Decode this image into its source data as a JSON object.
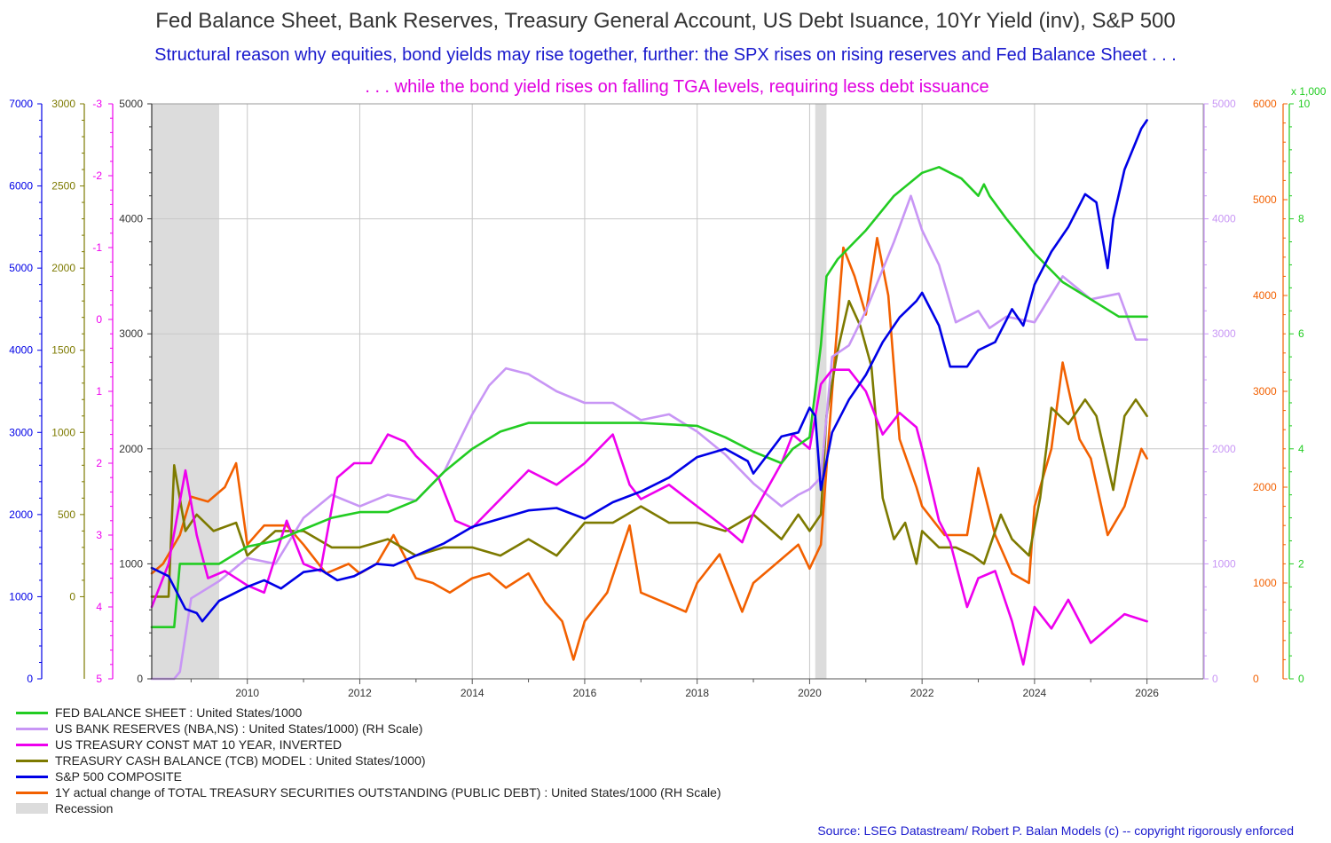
{
  "title": "Fed Balance Sheet, Bank Reserves, Treasury General Account, US Debt Isuance, 10Yr Yield (inv), S&P 500",
  "subtitle1": "Structural reason why equities, bond yields may rise together, further: the SPX rises on rising reserves and Fed Balance Sheet . . .",
  "subtitle2": ". . . while the bond yield rises on falling TGA levels, requiring less debt issuance",
  "source": "Source: LSEG Datastream/  Robert P. Balan Models (c) -- copyright rigorously enforced",
  "colors": {
    "fed": "#22cc22",
    "reserves": "#c896f5",
    "yield": "#ee00ee",
    "tga": "#7d7a00",
    "spx": "#0000e6",
    "debt": "#f26000",
    "recession": "#dcdcdc",
    "title": "#333333",
    "subtitle1": "#1a1acd",
    "subtitle2": "#e000e0"
  },
  "legend": [
    {
      "label": "FED BALANCE SHEET : United States/1000",
      "color": "#22cc22"
    },
    {
      "label": "US BANK RESERVES (NBA,NS) : United States/1000) (RH Scale)",
      "color": "#c896f5"
    },
    {
      "label": "US TREASURY CONST MAT 10 YEAR, INVERTED",
      "color": "#ee00ee"
    },
    {
      "label": "TREASURY CASH BALANCE (TCB)  MODEL : United States/1000)",
      "color": "#7d7a00"
    },
    {
      "label": "S&P 500 COMPOSITE",
      "color": "#0000e6"
    },
    {
      "label": "1Y actual change of TOTAL TREASURY SECURITIES OUTSTANDING (PUBLIC DEBT) : United States/1000 (RH Scale)",
      "color": "#f26000"
    },
    {
      "label": "Recession",
      "color": "#dcdcdc"
    }
  ],
  "chart_data": {
    "type": "line",
    "xlim": [
      2008.3,
      2027.0
    ],
    "x_ticks": [
      "2010",
      "2012",
      "2014",
      "2016",
      "2018",
      "2020",
      "2022",
      "2024",
      "2026"
    ],
    "recessions": [
      [
        2008.3,
        2009.5
      ],
      [
        2020.1,
        2020.3
      ]
    ],
    "axes": {
      "spx_axis": {
        "range": [
          0,
          7000
        ],
        "ticks": [
          "0",
          "1000",
          "2000",
          "3000",
          "4000",
          "5000",
          "6000",
          "7000"
        ],
        "color": "#0000e6"
      },
      "tga_axis": {
        "range": [
          -500,
          3000
        ],
        "ticks": [
          "0",
          "500",
          "1000",
          "1500",
          "2000",
          "2500",
          "3000"
        ],
        "color": "#7d7a00"
      },
      "yield_axis": {
        "range": [
          5,
          -3
        ],
        "inverted": true,
        "ticks": [
          "-3",
          "-2",
          "-1",
          "0",
          "1",
          "2",
          "3",
          "4",
          "5"
        ],
        "color": "#ee00ee"
      },
      "primary_axis": {
        "range": [
          0,
          5000
        ],
        "ticks": [
          "0",
          "1000",
          "2000",
          "3000",
          "4000",
          "5000"
        ],
        "color": "#333333"
      },
      "reserves_axis": {
        "range": [
          0,
          5000
        ],
        "ticks": [
          "0",
          "1000",
          "2000",
          "3000",
          "4000",
          "5000"
        ],
        "color": "#c896f5"
      },
      "debt_axis": {
        "range": [
          0,
          6000
        ],
        "ticks": [
          "0",
          "1000",
          "2000",
          "3000",
          "4000",
          "5000",
          "6000"
        ],
        "color": "#f26000"
      },
      "fed_axis": {
        "range": [
          0,
          10
        ],
        "ticks": [
          "0",
          "2",
          "4",
          "6",
          "8",
          "10"
        ],
        "unit_label": "x 1,000",
        "color": "#22cc22"
      }
    },
    "series": [
      {
        "name": "FED BALANCE SHEET : United States/1000",
        "axis": "fed_axis",
        "x": [
          2008.3,
          2008.7,
          2008.8,
          2009.0,
          2009.5,
          2010.0,
          2010.5,
          2011.0,
          2011.5,
          2012.0,
          2012.5,
          2013.0,
          2013.5,
          2014.0,
          2014.5,
          2015.0,
          2016.0,
          2017.0,
          2018.0,
          2018.5,
          2019.0,
          2019.5,
          2019.7,
          2020.0,
          2020.2,
          2020.3,
          2020.5,
          2021.0,
          2021.5,
          2022.0,
          2022.3,
          2022.7,
          2023.0,
          2023.1,
          2023.2,
          2023.5,
          2024.0,
          2024.5,
          2025.0,
          2025.5,
          2026.0
        ],
        "y": [
          0.9,
          0.9,
          2.0,
          2.0,
          2.0,
          2.3,
          2.4,
          2.6,
          2.8,
          2.9,
          2.9,
          3.1,
          3.6,
          4.0,
          4.3,
          4.45,
          4.45,
          4.45,
          4.4,
          4.2,
          3.95,
          3.75,
          4.0,
          4.2,
          5.8,
          7.0,
          7.3,
          7.8,
          8.4,
          8.8,
          8.9,
          8.7,
          8.4,
          8.6,
          8.4,
          8.0,
          7.4,
          6.9,
          6.6,
          6.3,
          6.3
        ]
      },
      {
        "name": "US BANK RESERVES (NBA,NS) : United States/1000) (RH Scale)",
        "axis": "reserves_axis",
        "x": [
          2008.3,
          2008.7,
          2008.8,
          2009.0,
          2009.5,
          2010.0,
          2010.5,
          2011.0,
          2011.5,
          2012.0,
          2012.5,
          2013.0,
          2013.5,
          2014.0,
          2014.3,
          2014.6,
          2015.0,
          2015.5,
          2016.0,
          2016.5,
          2017.0,
          2017.5,
          2018.0,
          2018.5,
          2019.0,
          2019.5,
          2019.8,
          2020.0,
          2020.2,
          2020.4,
          2020.7,
          2021.0,
          2021.5,
          2021.8,
          2022.0,
          2022.3,
          2022.6,
          2023.0,
          2023.2,
          2023.5,
          2024.0,
          2024.5,
          2025.0,
          2025.5,
          2025.8,
          2026.0
        ],
        "y": [
          0,
          0,
          60,
          700,
          850,
          1050,
          1000,
          1400,
          1600,
          1500,
          1600,
          1550,
          1800,
          2300,
          2550,
          2700,
          2650,
          2500,
          2400,
          2400,
          2250,
          2300,
          2150,
          1950,
          1700,
          1500,
          1600,
          1650,
          1750,
          2800,
          2900,
          3200,
          3800,
          4200,
          3900,
          3600,
          3100,
          3200,
          3050,
          3150,
          3100,
          3500,
          3300,
          3350,
          2950,
          2950
        ]
      },
      {
        "name": "US TREASURY CONST MAT 10 YEAR, INVERTED",
        "axis": "yield_axis",
        "x": [
          2008.3,
          2008.6,
          2008.9,
          2009.1,
          2009.3,
          2009.6,
          2010.0,
          2010.3,
          2010.7,
          2011.0,
          2011.3,
          2011.6,
          2011.9,
          2012.2,
          2012.5,
          2012.8,
          2013.0,
          2013.4,
          2013.7,
          2014.0,
          2014.5,
          2015.0,
          2015.5,
          2016.0,
          2016.5,
          2016.8,
          2017.0,
          2017.5,
          2018.0,
          2018.5,
          2018.8,
          2019.0,
          2019.5,
          2019.7,
          2020.0,
          2020.2,
          2020.4,
          2020.7,
          2021.0,
          2021.3,
          2021.6,
          2021.9,
          2022.0,
          2022.3,
          2022.5,
          2022.8,
          2023.0,
          2023.3,
          2023.6,
          2023.8,
          2024.0,
          2024.3,
          2024.6,
          2025.0,
          2025.3,
          2025.6,
          2026.0
        ],
        "y": [
          4.0,
          3.4,
          2.1,
          3.0,
          3.6,
          3.5,
          3.7,
          3.8,
          2.8,
          3.4,
          3.5,
          2.2,
          2.0,
          2.0,
          1.6,
          1.7,
          1.9,
          2.2,
          2.8,
          2.9,
          2.5,
          2.1,
          2.3,
          2.0,
          1.6,
          2.3,
          2.5,
          2.3,
          2.6,
          2.9,
          3.1,
          2.7,
          2.0,
          1.6,
          1.8,
          0.9,
          0.7,
          0.7,
          1.0,
          1.6,
          1.3,
          1.5,
          1.8,
          2.8,
          3.1,
          4.0,
          3.6,
          3.5,
          4.2,
          4.8,
          4.0,
          4.3,
          3.9,
          4.5,
          4.3,
          4.1,
          4.2
        ]
      },
      {
        "name": "TREASURY CASH BALANCE (TCB)  MODEL : United States/1000)",
        "axis": "tga_axis",
        "x": [
          2008.3,
          2008.6,
          2008.7,
          2008.9,
          2009.1,
          2009.4,
          2009.8,
          2010.0,
          2010.5,
          2011.0,
          2011.5,
          2012.0,
          2012.5,
          2013.0,
          2013.5,
          2014.0,
          2014.5,
          2015.0,
          2015.5,
          2016.0,
          2016.5,
          2017.0,
          2017.5,
          2018.0,
          2018.5,
          2019.0,
          2019.5,
          2019.8,
          2020.0,
          2020.2,
          2020.3,
          2020.5,
          2020.7,
          2020.9,
          2021.1,
          2021.3,
          2021.5,
          2021.7,
          2021.9,
          2022.0,
          2022.3,
          2022.6,
          2022.9,
          2023.1,
          2023.4,
          2023.6,
          2023.9,
          2024.1,
          2024.3,
          2024.6,
          2024.9,
          2025.1,
          2025.4,
          2025.6,
          2025.8,
          2026.0
        ],
        "y": [
          0,
          0,
          800,
          400,
          500,
          400,
          450,
          250,
          400,
          400,
          300,
          300,
          350,
          250,
          300,
          300,
          250,
          350,
          250,
          450,
          450,
          550,
          450,
          450,
          400,
          500,
          350,
          500,
          400,
          500,
          1100,
          1500,
          1800,
          1650,
          1400,
          600,
          350,
          450,
          200,
          400,
          300,
          300,
          250,
          200,
          500,
          350,
          250,
          600,
          1150,
          1050,
          1200,
          1100,
          650,
          1100,
          1200,
          1100
        ]
      },
      {
        "name": "S&P 500 COMPOSITE",
        "axis": "spx_axis",
        "x": [
          2008.3,
          2008.6,
          2008.9,
          2009.1,
          2009.2,
          2009.5,
          2010.0,
          2010.3,
          2010.6,
          2011.0,
          2011.3,
          2011.6,
          2011.9,
          2012.3,
          2012.6,
          2013.0,
          2013.5,
          2014.0,
          2014.5,
          2015.0,
          2015.5,
          2016.0,
          2016.5,
          2017.0,
          2017.5,
          2018.0,
          2018.5,
          2018.9,
          2019.0,
          2019.5,
          2019.8,
          2020.0,
          2020.1,
          2020.2,
          2020.4,
          2020.7,
          2021.0,
          2021.3,
          2021.6,
          2021.9,
          2022.0,
          2022.3,
          2022.5,
          2022.8,
          2023.0,
          2023.3,
          2023.6,
          2023.8,
          2024.0,
          2024.3,
          2024.6,
          2024.9,
          2025.1,
          2025.3,
          2025.4,
          2025.6,
          2025.9,
          2026.0
        ],
        "y": [
          1350,
          1250,
          850,
          800,
          700,
          950,
          1120,
          1200,
          1100,
          1300,
          1330,
          1200,
          1250,
          1400,
          1380,
          1500,
          1650,
          1850,
          1950,
          2050,
          2080,
          1950,
          2150,
          2280,
          2450,
          2700,
          2800,
          2650,
          2500,
          2950,
          3000,
          3300,
          3200,
          2300,
          3000,
          3400,
          3700,
          4100,
          4400,
          4600,
          4700,
          4300,
          3800,
          3800,
          4000,
          4100,
          4500,
          4300,
          4800,
          5200,
          5500,
          5900,
          5800,
          5000,
          5600,
          6200,
          6700,
          6800
        ]
      },
      {
        "name": "1Y actual change of TOTAL TREASURY SECURITIES OUTSTANDING (PUBLIC DEBT) : United States/1000 (RH Scale)",
        "axis": "debt_axis",
        "x": [
          2008.3,
          2008.5,
          2008.8,
          2009.0,
          2009.3,
          2009.6,
          2009.8,
          2010.0,
          2010.3,
          2010.7,
          2011.0,
          2011.4,
          2011.8,
          2012.0,
          2012.3,
          2012.6,
          2013.0,
          2013.3,
          2013.6,
          2014.0,
          2014.3,
          2014.6,
          2015.0,
          2015.3,
          2015.6,
          2015.8,
          2016.0,
          2016.4,
          2016.8,
          2017.0,
          2017.4,
          2017.8,
          2018.0,
          2018.4,
          2018.8,
          2019.0,
          2019.4,
          2019.8,
          2020.0,
          2020.2,
          2020.4,
          2020.6,
          2020.8,
          2021.0,
          2021.2,
          2021.4,
          2021.6,
          2021.9,
          2022.0,
          2022.4,
          2022.8,
          2023.0,
          2023.3,
          2023.6,
          2023.9,
          2024.0,
          2024.3,
          2024.5,
          2024.8,
          2025.0,
          2025.3,
          2025.6,
          2025.9,
          2026.0
        ],
        "y": [
          1100,
          1200,
          1500,
          1900,
          1850,
          2000,
          2250,
          1400,
          1600,
          1600,
          1400,
          1100,
          1200,
          1100,
          1200,
          1500,
          1050,
          1000,
          900,
          1050,
          1100,
          950,
          1100,
          800,
          600,
          200,
          600,
          900,
          1600,
          900,
          800,
          700,
          1000,
          1300,
          700,
          1000,
          1200,
          1400,
          1150,
          1400,
          3000,
          4500,
          4200,
          3800,
          4600,
          4000,
          2500,
          2000,
          1800,
          1500,
          1500,
          2200,
          1500,
          1100,
          1000,
          1800,
          2400,
          3300,
          2500,
          2300,
          1500,
          1800,
          2400,
          2300
        ]
      }
    ]
  }
}
